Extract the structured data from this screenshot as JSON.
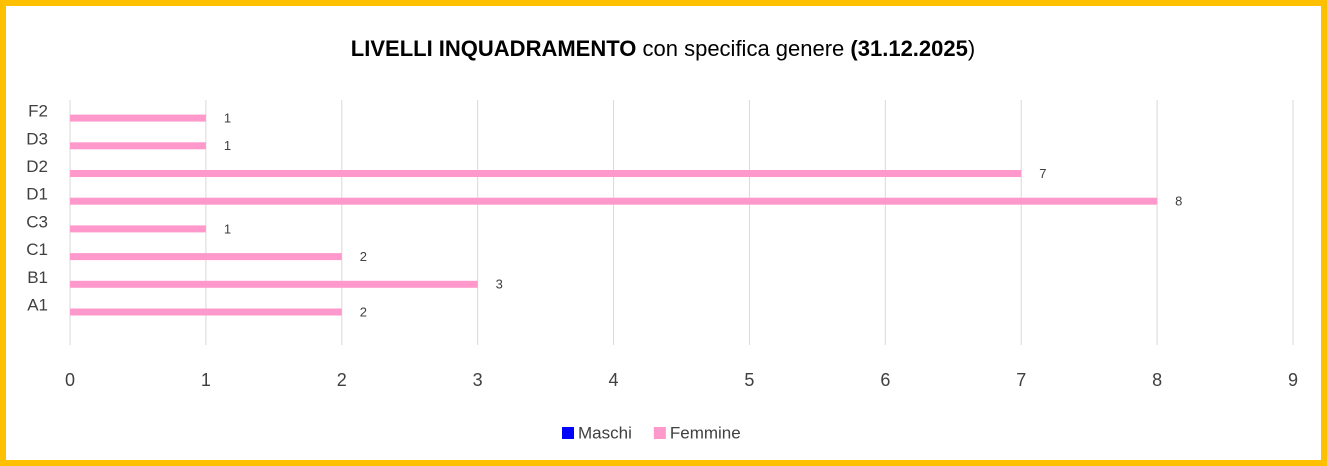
{
  "chart_data": {
    "type": "bar",
    "orientation": "horizontal",
    "title_parts": [
      {
        "text": "LIVELLI INQUADRAMENTO",
        "bold": true
      },
      {
        "text": " con specifica genere ",
        "bold": false
      },
      {
        "text": "(31.12.2025",
        "bold": true
      },
      {
        "text": ")",
        "bold": false
      }
    ],
    "categories": [
      "A1",
      "B1",
      "C1",
      "C3",
      "D1",
      "D2",
      "D3",
      "F2"
    ],
    "series": [
      {
        "name": "Maschi",
        "color": "#0000ff",
        "values": [
          null,
          null,
          null,
          null,
          null,
          null,
          null,
          null
        ]
      },
      {
        "name": "Femmine",
        "color": "#ff99cc",
        "values": [
          2,
          3,
          2,
          1,
          8,
          7,
          1,
          1
        ]
      }
    ],
    "xlim": [
      0,
      9
    ],
    "xticks": [
      0,
      1,
      2,
      3,
      4,
      5,
      6,
      7,
      8,
      9
    ],
    "grid": true,
    "legend": "bottom"
  }
}
